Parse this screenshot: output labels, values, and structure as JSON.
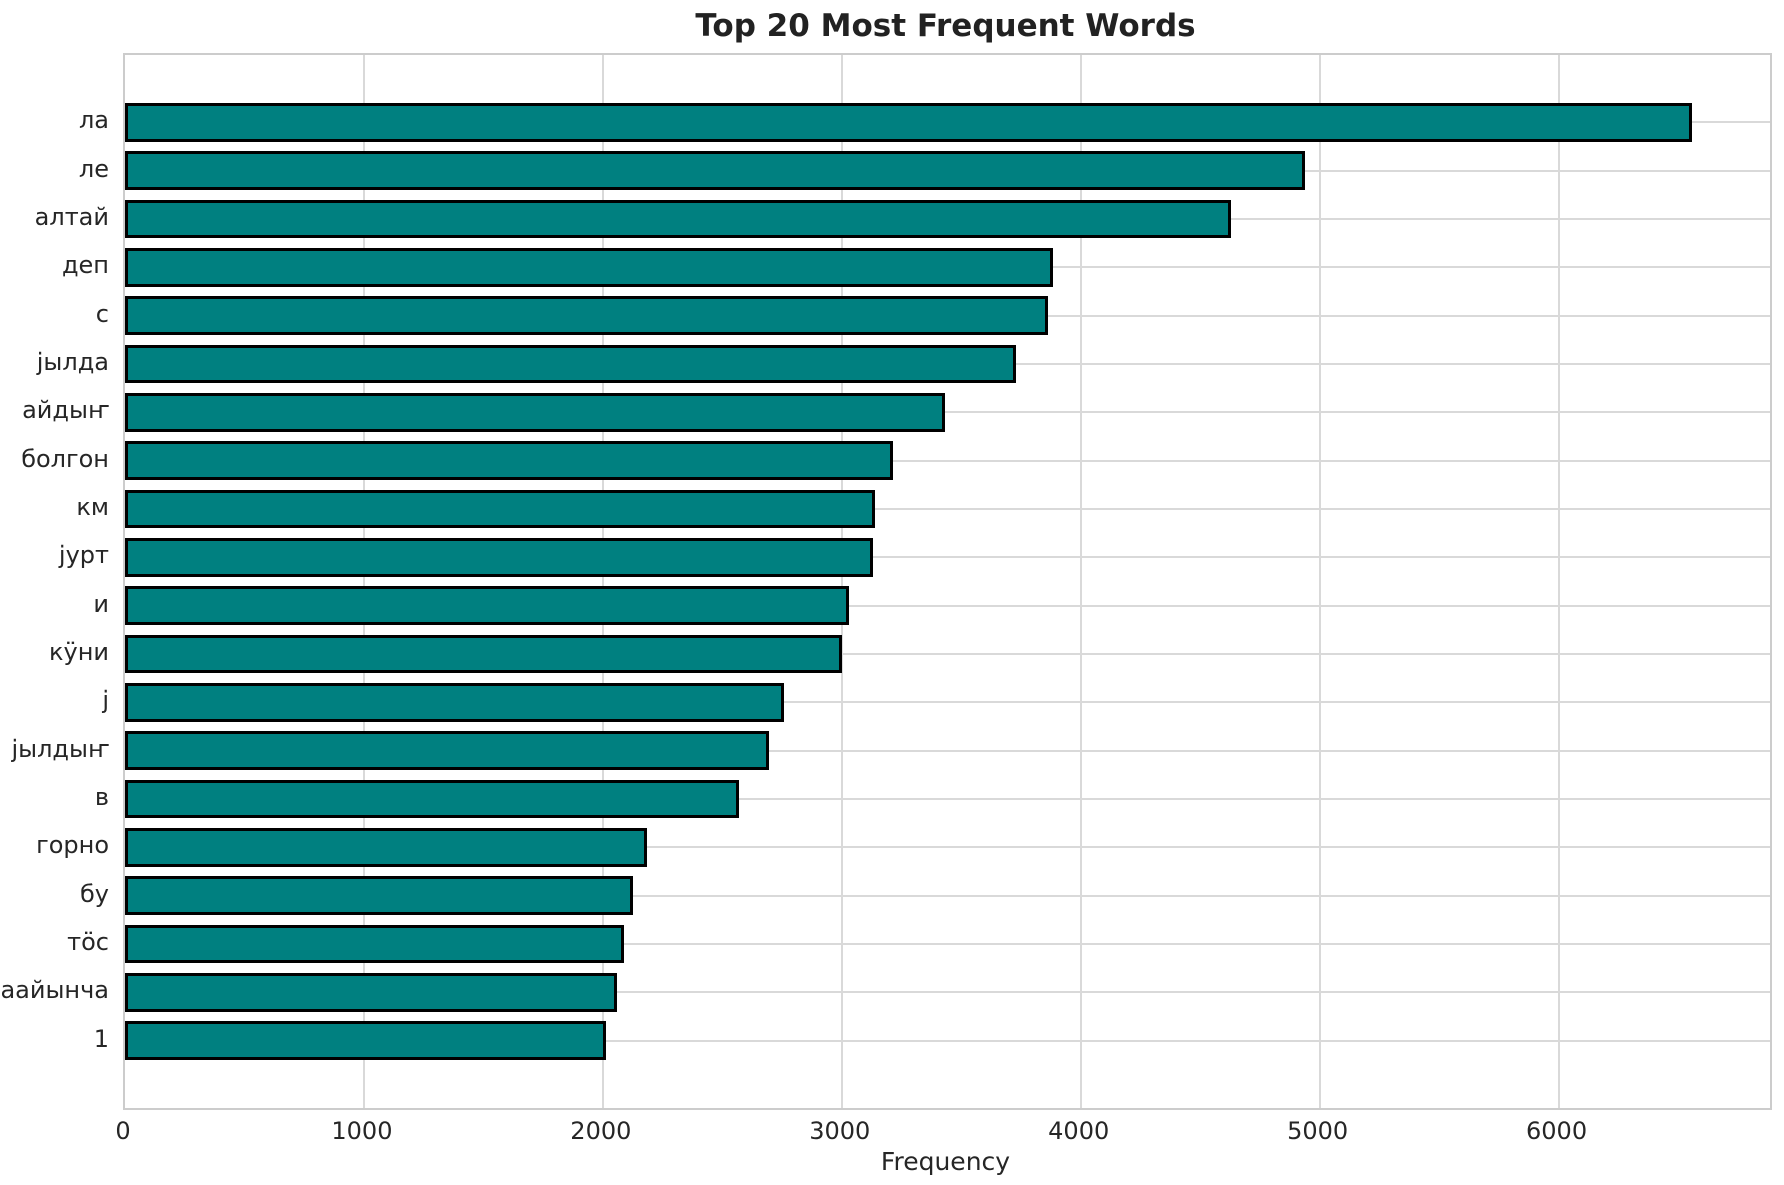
{
  "figure": {
    "title": "Top 20 Most Frequent Words"
  },
  "chart_data": {
    "type": "bar",
    "orientation": "horizontal",
    "title": "Top 20 Most Frequent Words",
    "xlabel": "Frequency",
    "ylabel": "",
    "categories": [
      "ла",
      "ле",
      "алтай",
      "деп",
      "с",
      "јылда",
      "айдыҥ",
      "болгон",
      "км",
      "јурт",
      "и",
      "кӱни",
      "ј",
      "јылдыҥ",
      "в",
      "горно",
      "бу",
      "тӧс",
      "аайынча",
      "1"
    ],
    "values": [
      6560,
      4940,
      4630,
      3885,
      3865,
      3730,
      3430,
      3215,
      3140,
      3130,
      3030,
      3000,
      2760,
      2695,
      2570,
      2185,
      2125,
      2090,
      2060,
      2015
    ],
    "xlim": [
      0,
      6885
    ],
    "xticks": [
      0,
      1000,
      2000,
      3000,
      4000,
      5000,
      6000
    ],
    "grid": true,
    "legend": "none",
    "bar_color": "#008080",
    "bar_edge_color": "#000000",
    "grid_color": "#d9d9d9",
    "axis_edge_color": "#cccccc",
    "text_color": "#262626",
    "background_color": "#ffffff"
  }
}
